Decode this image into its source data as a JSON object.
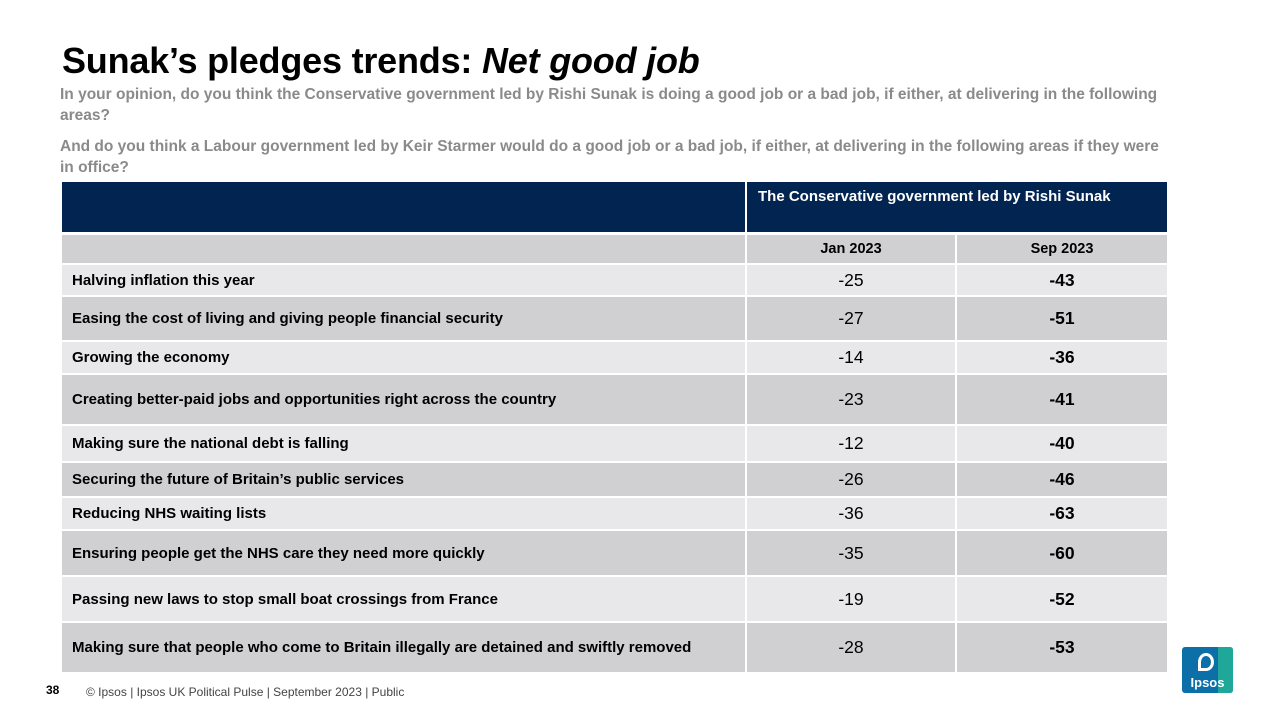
{
  "title": {
    "main": "Sunak’s pledges trends: ",
    "emphasis": "Net good job"
  },
  "questions": [
    "In your opinion, do you think the Conservative government led by Rishi Sunak is doing a good job or a bad job, if either, at delivering in the following areas?",
    "And do you think a Labour government led by Keir Starmer would do a good job or a bad job, if either, at delivering in the following areas if they were in office?"
  ],
  "table": {
    "group_header": "The Conservative government led by Rishi Sunak",
    "columns": [
      "Jan 2023",
      "Sep 2023"
    ],
    "rows": [
      {
        "label": "Halving inflation this year",
        "jan": "-25",
        "sep": "-43"
      },
      {
        "label": "Easing the cost of living and giving people financial security",
        "jan": "-27",
        "sep": "-51"
      },
      {
        "label": "Growing the economy",
        "jan": "-14",
        "sep": "-36"
      },
      {
        "label": "Creating better-paid jobs and opportunities right across the country",
        "jan": "-23",
        "sep": "-41"
      },
      {
        "label": "Making sure the national debt is falling",
        "jan": "-12",
        "sep": "-40"
      },
      {
        "label": "Securing the future of Britain’s public services",
        "jan": "-26",
        "sep": "-46"
      },
      {
        "label": "Reducing NHS waiting lists",
        "jan": "-36",
        "sep": "-63"
      },
      {
        "label": "Ensuring people get the NHS care they need more quickly",
        "jan": "-35",
        "sep": "-60"
      },
      {
        "label": "Passing new laws to stop small boat crossings from France",
        "jan": "-19",
        "sep": "-52"
      },
      {
        "label": "Making sure that people who come to Britain illegally are detained and swiftly removed",
        "jan": "-28",
        "sep": "-53"
      }
    ]
  },
  "footer": {
    "page_number": "38",
    "text": "© Ipsos  |  Ipsos UK Political Pulse | September  2023 | Public"
  },
  "logo": {
    "text": "Ipsos"
  },
  "colors": {
    "header_navy": "#022451",
    "row_light": "#e8e8ea",
    "row_dark": "#d0d0d2",
    "question_grey": "#8a8a8a"
  }
}
